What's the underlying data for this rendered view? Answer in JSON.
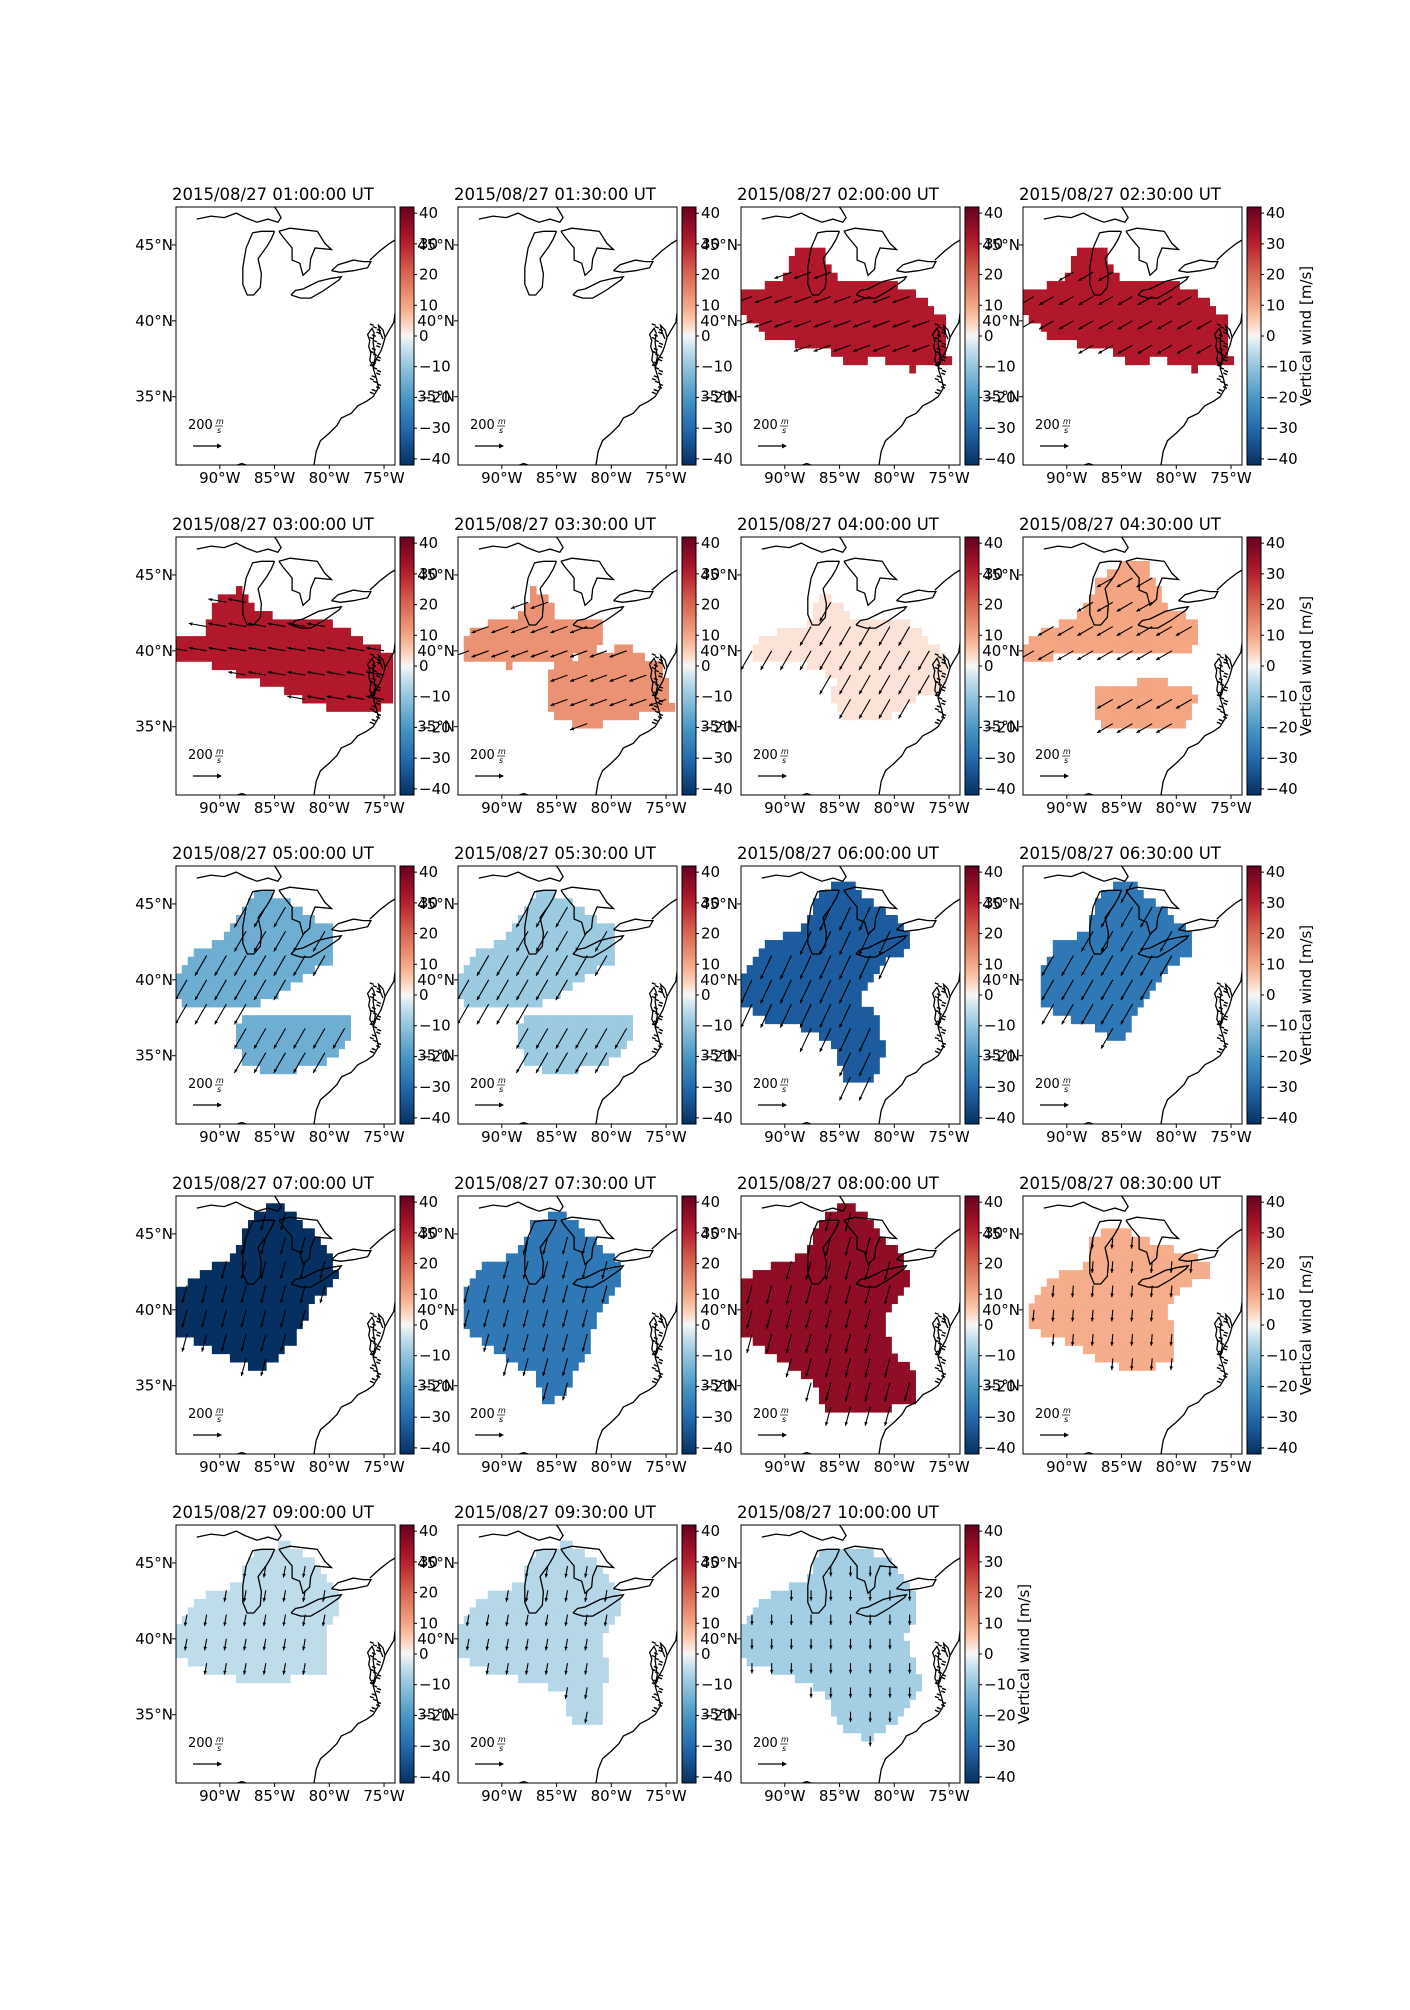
{
  "figure": {
    "value_range": [
      -42,
      42
    ],
    "colormap": "red-blue diverging (blue negative, red positive)",
    "colorbar": {
      "ticks": [
        40,
        30,
        20,
        10,
        0,
        -10,
        -20,
        -30,
        -40
      ],
      "tick_labels": [
        "40",
        "30",
        "20",
        "10",
        "0",
        "−10",
        "−20",
        "−30",
        "−40"
      ],
      "label": "Vertical wind [m/s]"
    },
    "axes": {
      "lon_range": [
        -94,
        -74
      ],
      "lat_range": [
        30.5,
        47.5
      ],
      "lon_ticks": [
        -90,
        -85,
        -80,
        -75
      ],
      "lon_tick_labels": [
        "90°W",
        "85°W",
        "80°W",
        "75°W"
      ],
      "lat_ticks": [
        45,
        40,
        35
      ],
      "lat_tick_labels": [
        "45°N",
        "40°N",
        "35°N"
      ]
    },
    "reference_arrow": {
      "value": "200",
      "unit_numerator": "m",
      "unit_denominator": "s"
    },
    "colors": {
      "strong_red": "#c0393b",
      "strong_blue": "#0b3365",
      "coast": "#000000"
    }
  },
  "panels": [
    {
      "title": "2015/08/27 01:00:00 UT",
      "value": null,
      "region": "none",
      "wind_dir_deg": 0,
      "arrow_len": 0
    },
    {
      "title": "2015/08/27 01:30:00 UT",
      "value": null,
      "region": "none",
      "wind_dir_deg": 0,
      "arrow_len": 0
    },
    {
      "title": "2015/08/27 02:00:00 UT",
      "value": 31,
      "region": "band_wide",
      "wind_dir_deg": 250,
      "arrow_len": 0.7
    },
    {
      "title": "2015/08/27 02:30:00 UT",
      "value": 31,
      "region": "band_wide",
      "wind_dir_deg": 240,
      "arrow_len": 0.65
    },
    {
      "title": "2015/08/27 03:00:00 UT",
      "value": 31,
      "region": "band_east",
      "wind_dir_deg": 280,
      "arrow_len": 0.7
    },
    {
      "title": "2015/08/27 03:30:00 UT",
      "value": 13,
      "region": "split",
      "wind_dir_deg": 250,
      "arrow_len": 0.7
    },
    {
      "title": "2015/08/27 04:00:00 UT",
      "value": 2,
      "region": "split_joined",
      "wind_dir_deg": 210,
      "arrow_len": 0.85
    },
    {
      "title": "2015/08/27 04:30:00 UT",
      "value": 10,
      "region": "two_blobs",
      "wind_dir_deg": 240,
      "arrow_len": 0.7
    },
    {
      "title": "2015/08/27 05:00:00 UT",
      "value": -15,
      "region": "two_blobs_wide",
      "wind_dir_deg": 210,
      "arrow_len": 0.9
    },
    {
      "title": "2015/08/27 05:30:00 UT",
      "value": -9,
      "region": "two_blobs_wide",
      "wind_dir_deg": 210,
      "arrow_len": 0.9
    },
    {
      "title": "2015/08/27 06:00:00 UT",
      "value": -33,
      "region": "tail_se",
      "wind_dir_deg": 205,
      "arrow_len": 1.0
    },
    {
      "title": "2015/08/27 06:30:00 UT",
      "value": -27,
      "region": "compact",
      "wind_dir_deg": 210,
      "arrow_len": 0.9
    },
    {
      "title": "2015/08/27 07:00:00 UT",
      "value": -42,
      "region": "big_west",
      "wind_dir_deg": 195,
      "arrow_len": 0.7
    },
    {
      "title": "2015/08/27 07:30:00 UT",
      "value": -27,
      "region": "big_south",
      "wind_dir_deg": 195,
      "arrow_len": 0.7
    },
    {
      "title": "2015/08/27 08:00:00 UT",
      "value": 36,
      "region": "big_se",
      "wind_dir_deg": 195,
      "arrow_len": 0.75
    },
    {
      "title": "2015/08/27 08:30:00 UT",
      "value": 9,
      "region": "mid_south",
      "wind_dir_deg": 185,
      "arrow_len": 0.45
    },
    {
      "title": "2015/08/27 09:00:00 UT",
      "value": -5,
      "region": "mid_wide",
      "wind_dir_deg": 190,
      "arrow_len": 0.45
    },
    {
      "title": "2015/08/27 09:30:00 UT",
      "value": -6,
      "region": "mid_tail",
      "wind_dir_deg": 190,
      "arrow_len": 0.45
    },
    {
      "title": "2015/08/27 10:00:00 UT",
      "value": -8,
      "region": "mid_tail_wide",
      "wind_dir_deg": 180,
      "arrow_len": 0.4
    }
  ]
}
